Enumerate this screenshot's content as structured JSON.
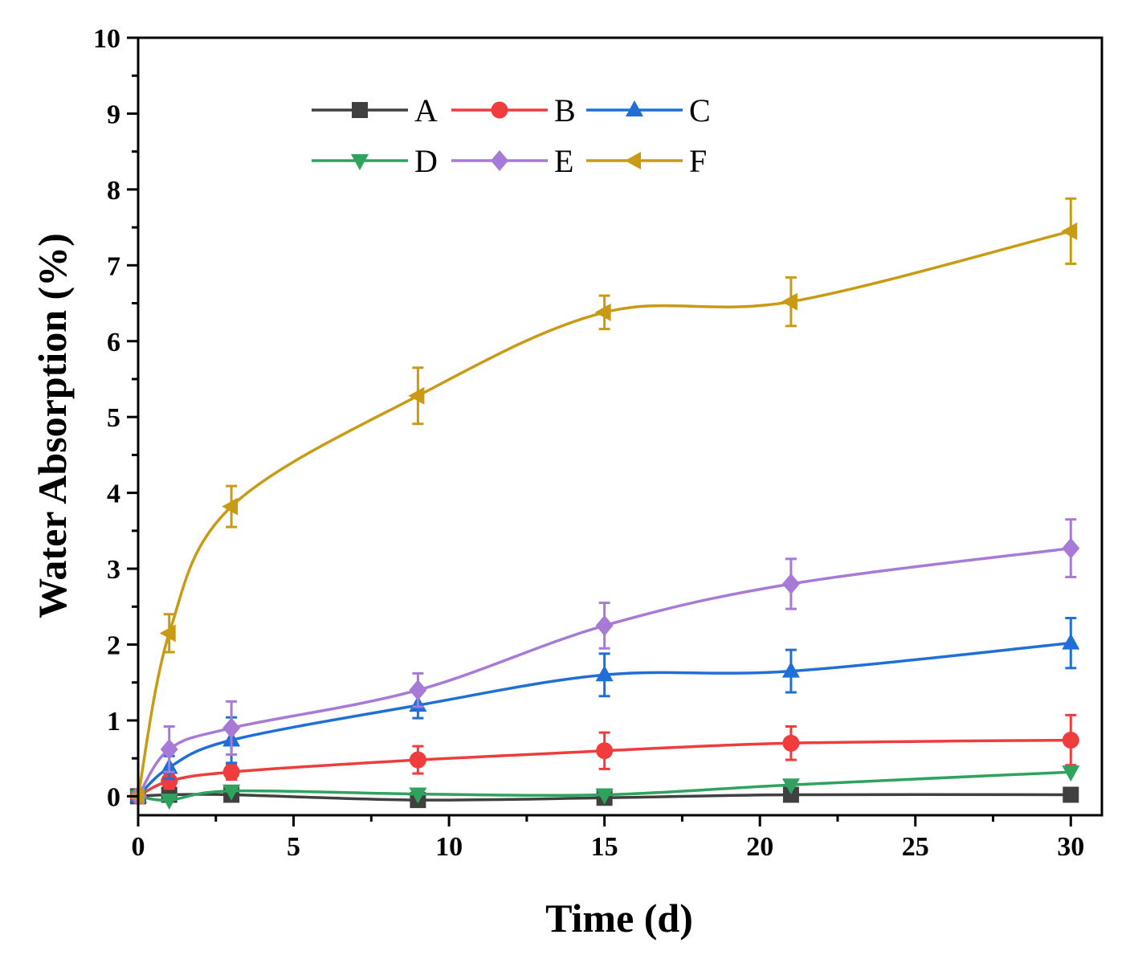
{
  "chart_data": {
    "type": "line",
    "title": "",
    "xlabel": "Time (d)",
    "ylabel": "Water Absorption (%)",
    "xlim": [
      0,
      31
    ],
    "ylim": [
      -0.25,
      10
    ],
    "xticks": [
      0,
      5,
      10,
      15,
      20,
      25,
      30
    ],
    "yticks": [
      0,
      1,
      2,
      3,
      4,
      5,
      6,
      7,
      8,
      9,
      10
    ],
    "xtick_labels": [
      "0",
      "5",
      "10",
      "15",
      "20",
      "25",
      "30"
    ],
    "ytick_labels": [
      "0",
      "1",
      "2",
      "3",
      "4",
      "5",
      "6",
      "7",
      "8",
      "9",
      "10"
    ],
    "legend_position": "top-left",
    "x": [
      0,
      1,
      3,
      9,
      15,
      21,
      30
    ],
    "series": [
      {
        "name": "A",
        "color": "#404040",
        "marker": "square",
        "values": [
          0,
          0.02,
          0.02,
          -0.05,
          -0.02,
          0.02,
          0.02
        ],
        "errors": [
          0,
          0,
          0,
          0,
          0,
          0,
          0
        ]
      },
      {
        "name": "B",
        "color": "#f03c3c",
        "marker": "circle",
        "values": [
          0,
          0.2,
          0.32,
          0.48,
          0.6,
          0.7,
          0.74
        ],
        "errors": [
          0,
          0.1,
          0.1,
          0.18,
          0.24,
          0.22,
          0.33
        ]
      },
      {
        "name": "C",
        "color": "#1f6fd6",
        "marker": "triangle-up",
        "values": [
          0,
          0.38,
          0.74,
          1.2,
          1.6,
          1.65,
          2.02
        ],
        "errors": [
          0,
          0.15,
          0.3,
          0.17,
          0.28,
          0.28,
          0.33
        ]
      },
      {
        "name": "D",
        "color": "#2fa35e",
        "marker": "triangle-down",
        "values": [
          0,
          -0.05,
          0.07,
          0.03,
          0.02,
          0.15,
          0.32
        ],
        "errors": [
          0,
          0,
          0,
          0,
          0,
          0,
          0
        ]
      },
      {
        "name": "E",
        "color": "#a77ad8",
        "marker": "diamond",
        "values": [
          0,
          0.62,
          0.9,
          1.4,
          2.25,
          2.8,
          3.27
        ],
        "errors": [
          0,
          0.3,
          0.35,
          0.22,
          0.3,
          0.33,
          0.38
        ]
      },
      {
        "name": "F",
        "color": "#c99a14",
        "marker": "triangle-left",
        "values": [
          0,
          2.15,
          3.82,
          5.28,
          6.38,
          6.52,
          7.45
        ],
        "errors": [
          0,
          0.25,
          0.27,
          0.37,
          0.22,
          0.32,
          0.43
        ]
      }
    ]
  }
}
